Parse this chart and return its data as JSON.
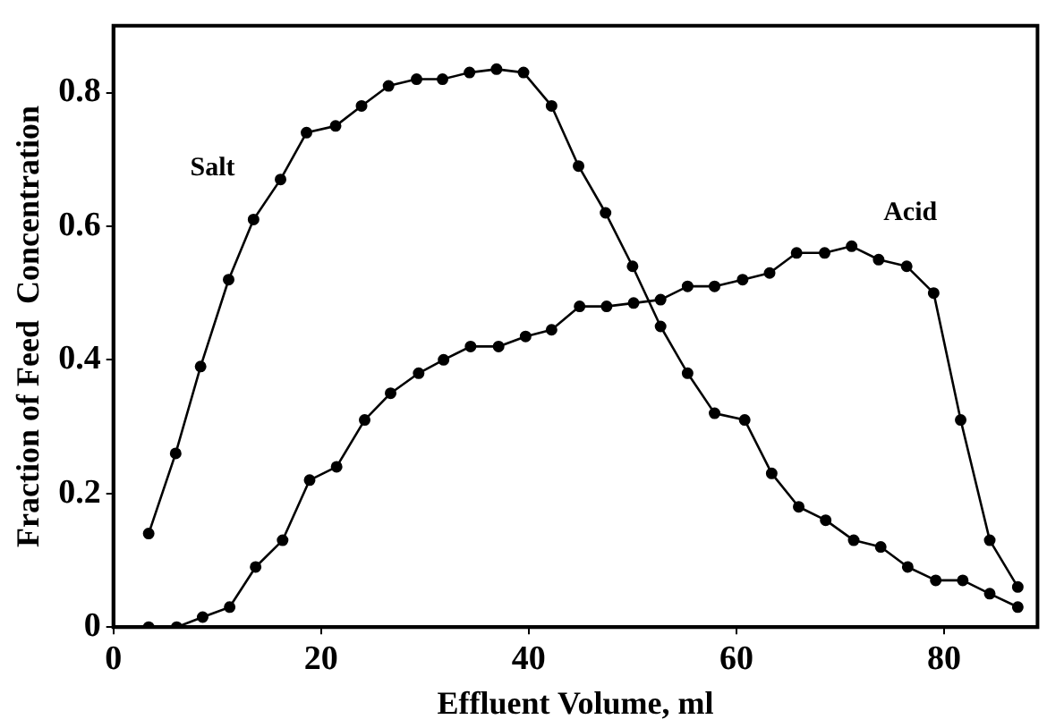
{
  "chart_data": {
    "type": "line",
    "xlabel": "Effluent Volume, ml",
    "ylabel": "Fraction of Feed  Concentration",
    "xlim": [
      0,
      89
    ],
    "xticks": [
      0,
      20,
      40,
      60,
      80
    ],
    "ylim": [
      0,
      0.9
    ],
    "yticks": [
      0,
      0.2,
      0.4,
      0.6,
      0.8
    ],
    "grid": false,
    "legend": false,
    "marker": "circle",
    "line_style": "solid",
    "series": [
      {
        "name": "Salt",
        "color": "#000000",
        "x": [
          3.4,
          6.0,
          8.4,
          11.1,
          13.5,
          16.1,
          18.6,
          21.4,
          23.9,
          26.5,
          29.2,
          31.7,
          34.3,
          36.9,
          39.5,
          42.2,
          44.8,
          47.4,
          50.0,
          52.7,
          55.3,
          57.9,
          60.8,
          63.4,
          66.0,
          68.6,
          71.3,
          73.9,
          76.5,
          79.2,
          81.8,
          84.4,
          87.1
        ],
        "values": [
          0.14,
          0.26,
          0.39,
          0.52,
          0.61,
          0.67,
          0.74,
          0.75,
          0.78,
          0.81,
          0.82,
          0.82,
          0.83,
          0.835,
          0.83,
          0.78,
          0.69,
          0.62,
          0.54,
          0.45,
          0.38,
          0.32,
          0.31,
          0.23,
          0.18,
          0.16,
          0.13,
          0.12,
          0.09,
          0.07,
          0.07,
          0.05,
          0.03
        ]
      },
      {
        "name": "Acid",
        "color": "#000000",
        "x": [
          3.4,
          6.1,
          8.6,
          11.2,
          13.7,
          16.3,
          18.9,
          21.5,
          24.2,
          26.7,
          29.4,
          31.8,
          34.4,
          37.1,
          39.7,
          42.2,
          44.9,
          47.5,
          50.1,
          52.7,
          55.3,
          57.9,
          60.6,
          63.2,
          65.8,
          68.5,
          71.1,
          73.7,
          76.4,
          79.0,
          81.6,
          84.4,
          87.1
        ],
        "values": [
          0.0,
          0.0,
          0.015,
          0.03,
          0.09,
          0.13,
          0.22,
          0.24,
          0.31,
          0.35,
          0.38,
          0.4,
          0.42,
          0.42,
          0.435,
          0.445,
          0.48,
          0.48,
          0.485,
          0.49,
          0.51,
          0.51,
          0.52,
          0.53,
          0.56,
          0.56,
          0.57,
          0.55,
          0.54,
          0.5,
          0.31,
          0.13,
          0.06
        ]
      }
    ]
  }
}
